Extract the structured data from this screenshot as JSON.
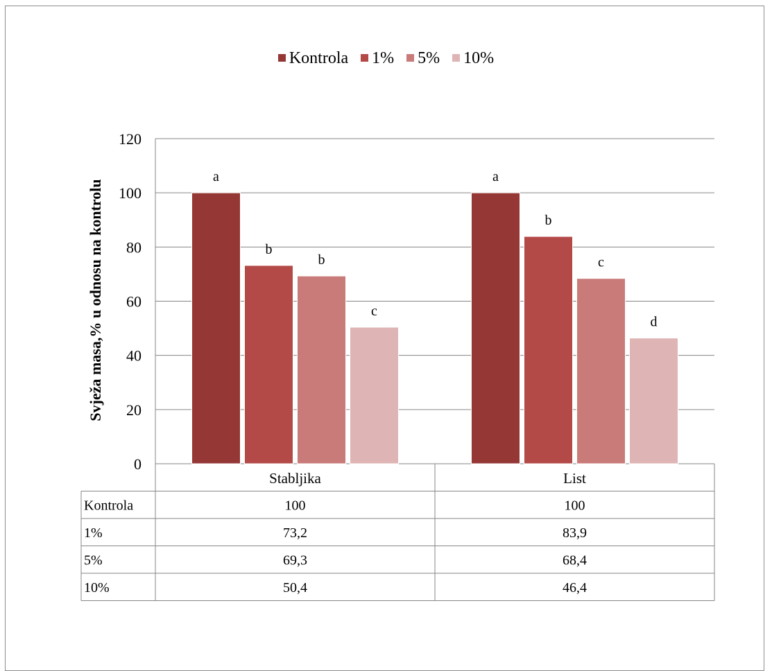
{
  "chart_data": {
    "type": "bar",
    "categories": [
      "Stabljika",
      "List"
    ],
    "series": [
      {
        "name": "Kontrola",
        "values": [
          100,
          100
        ],
        "color": "#953735",
        "labels": [
          "a",
          "a"
        ]
      },
      {
        "name": "1%",
        "values": [
          73.2,
          83.9
        ],
        "color": "#b34a47",
        "labels": [
          "b",
          "b"
        ]
      },
      {
        "name": "5%",
        "values": [
          69.3,
          68.4
        ],
        "color": "#c97b79",
        "labels": [
          "b",
          "c"
        ]
      },
      {
        "name": "10%",
        "values": [
          50.4,
          46.4
        ],
        "color": "#deb5b4",
        "labels": [
          "c",
          "d"
        ]
      }
    ],
    "ylabel": "Svježa masa,% u odnosu na kontrolu",
    "ylim": [
      0,
      120
    ],
    "yticks": [
      0,
      20,
      40,
      60,
      80,
      100,
      120
    ],
    "grid": true,
    "legend": "top-center",
    "data_table": {
      "rows": [
        {
          "label": "Kontrola",
          "values": [
            "100",
            "100"
          ]
        },
        {
          "label": "1%",
          "values": [
            "73,2",
            "83,9"
          ]
        },
        {
          "label": "5%",
          "values": [
            "69,3",
            "68,4"
          ]
        },
        {
          "label": "10%",
          "values": [
            "50,4",
            "46,4"
          ]
        }
      ]
    }
  }
}
